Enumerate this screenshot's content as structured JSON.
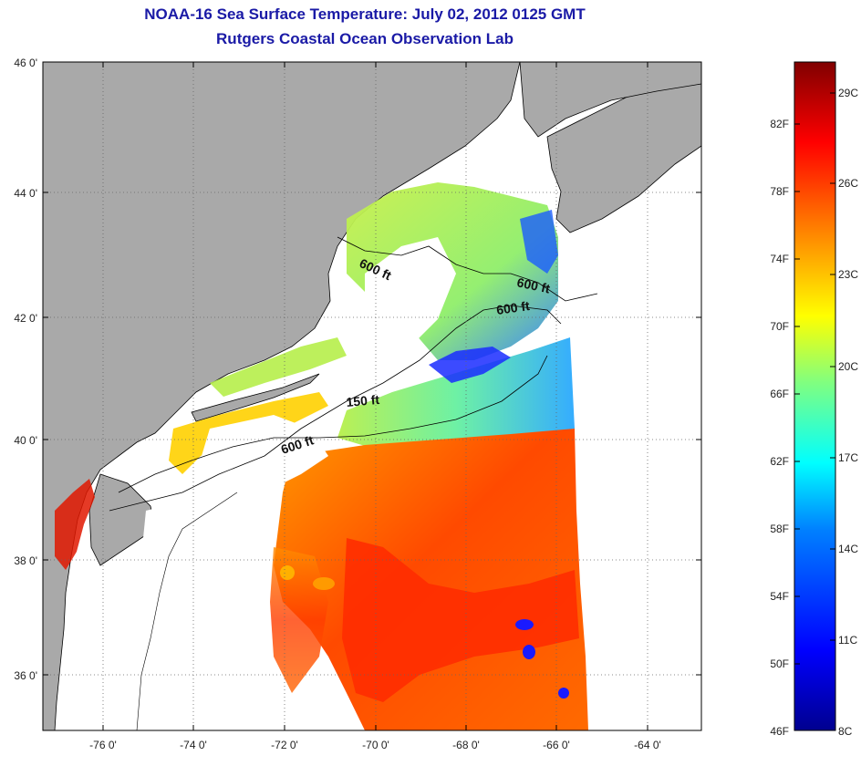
{
  "header": {
    "title": "NOAA-16 Sea Surface Temperature:  July 02, 2012 0125 GMT",
    "subtitle": "Rutgers Coastal Ocean Observation Lab"
  },
  "map": {
    "lon_ticks": [
      "-76 0'",
      "-74 0'",
      "-72 0'",
      "-70 0'",
      "-68 0'",
      "-66 0'",
      "-64 0'"
    ],
    "lat_ticks": [
      "46 0'",
      "44 0'",
      "42 0'",
      "40 0'",
      "38 0'",
      "36 0'"
    ],
    "contour_labels": [
      "600 ft",
      "600 ft",
      "600 ft",
      "150 ft",
      "600 ft"
    ],
    "colors": {
      "land": "#a9a9a9",
      "cloud": "#ffffff",
      "coast": "#000000"
    }
  },
  "colorbar": {
    "fahrenheit": [
      "82F",
      "78F",
      "74F",
      "70F",
      "66F",
      "62F",
      "58F",
      "54F",
      "50F",
      "46F"
    ],
    "celsius": [
      "29C",
      "26C",
      "23C",
      "20C",
      "17C",
      "14C",
      "11C",
      "8C"
    ],
    "colors": [
      "#00008f",
      "#0000ff",
      "#0080ff",
      "#00ffff",
      "#80ff80",
      "#ffff00",
      "#ff8000",
      "#ff0000",
      "#800000"
    ]
  }
}
